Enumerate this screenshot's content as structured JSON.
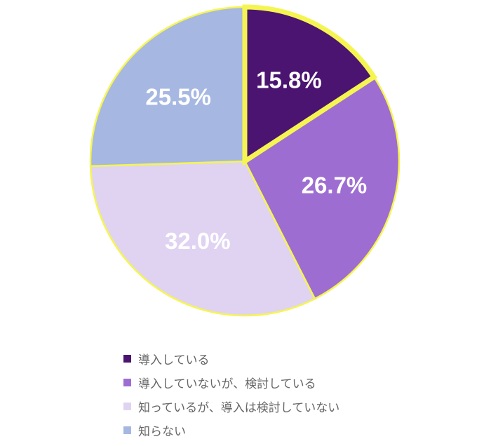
{
  "chart_data": {
    "type": "pie",
    "title": "",
    "labels": [
      "導入している",
      "導入していないが、検討している",
      "知っているが、導入は検討していない",
      "知らない"
    ],
    "values": [
      15.8,
      26.7,
      32.0,
      25.5
    ],
    "value_labels": [
      "15.8%",
      "26.7%",
      "32.0%",
      "25.5%"
    ],
    "colors": [
      "#4a1470",
      "#9e6dd2",
      "#e0d3f2",
      "#a6b7e2"
    ],
    "highlighted_slice": 0,
    "border_color": "#f5f551",
    "start_angle": "12 o'clock",
    "direction": "clockwise",
    "legend_position": "bottom"
  }
}
